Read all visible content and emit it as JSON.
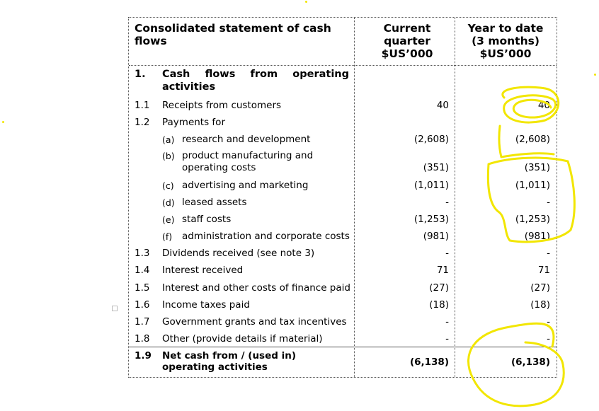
{
  "header": {
    "title": "Consolidated statement of cash flows",
    "col_current": [
      "Current",
      "quarter",
      "$US’000"
    ],
    "col_ytd": [
      "Year to date",
      "(3 months)",
      "$US’000"
    ]
  },
  "section": {
    "number": "1.",
    "title_line1": "Cash flows from operating",
    "title_line2": "activities"
  },
  "rows": [
    {
      "num": "1.1",
      "label": "Receipts from customers",
      "current": "40",
      "ytd": "40"
    },
    {
      "num": "1.2",
      "label": "Payments for",
      "current": "",
      "ytd": ""
    },
    {
      "letter": "(a)",
      "label": "research and development",
      "current": "(2,608)",
      "ytd": "(2,608)"
    },
    {
      "letter": "(b)",
      "label_line1": "product manufacturing and",
      "label_line2": "operating costs",
      "current": "(351)",
      "ytd": "(351)"
    },
    {
      "letter": "(c)",
      "label": "advertising and marketing",
      "current": "(1,011)",
      "ytd": "(1,011)"
    },
    {
      "letter": "(d)",
      "label": "leased assets",
      "current": "-",
      "ytd": "-"
    },
    {
      "letter": "(e)",
      "label": "staff costs",
      "current": "(1,253)",
      "ytd": "(1,253)"
    },
    {
      "letter": "(f)",
      "label": "administration and corporate costs",
      "current": "(981)",
      "ytd": "(981)"
    },
    {
      "num": "1.3",
      "label": "Dividends received (see note 3)",
      "current": "-",
      "ytd": "-"
    },
    {
      "num": "1.4",
      "label": "Interest received",
      "current": "71",
      "ytd": "71"
    },
    {
      "num": "1.5",
      "label": "Interest and other costs of finance paid",
      "current": "(27)",
      "ytd": "(27)"
    },
    {
      "num": "1.6",
      "label": "Income taxes paid",
      "current": "(18)",
      "ytd": "(18)"
    },
    {
      "num": "1.7",
      "label": "Government grants and tax incentives",
      "current": "-",
      "ytd": "-"
    },
    {
      "num": "1.8",
      "label": "Other (provide details if material)",
      "current": "-",
      "ytd": "-"
    }
  ],
  "total": {
    "num": "1.9",
    "label_line1": "Net cash from / (used in)",
    "label_line2": "operating activities",
    "current": "(6,138)",
    "ytd": "(6,138)"
  },
  "colors": {
    "highlight": "#f2e600",
    "rule": "#555555"
  }
}
